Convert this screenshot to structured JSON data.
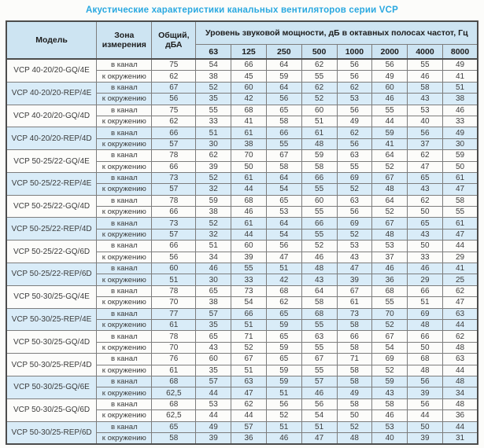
{
  "title": "Акустические характеристики канальных вентиляторов  серии VCP",
  "colors": {
    "title_blue": "#29a8e0",
    "header_bg": "#cde4f2",
    "shaded_row_bg": "#d9ecf8",
    "border_dark": "#4c4c4c",
    "border_light": "#7d7d7d"
  },
  "table": {
    "headers": {
      "model": "Модель",
      "zone": "Зона измерения",
      "total": "Общий, дБА",
      "power_band": "Уровень звуковой мощности, дБ в октавных полосах частот, Гц",
      "frequencies": [
        "63",
        "125",
        "250",
        "500",
        "1000",
        "2000",
        "4000",
        "8000"
      ]
    },
    "rows": [
      {
        "model": "VCP 40-20/20-GQ/4E",
        "shaded": false,
        "measurements": [
          {
            "zone": "в канал",
            "total": "75",
            "values": [
              54,
              66,
              64,
              62,
              56,
              56,
              55,
              49
            ]
          },
          {
            "zone": "к окружению",
            "total": "62",
            "values": [
              38,
              45,
              59,
              55,
              56,
              49,
              46,
              41
            ]
          }
        ]
      },
      {
        "model": "VCP 40-20/20-REP/4E",
        "shaded": true,
        "measurements": [
          {
            "zone": "в канал",
            "total": "67",
            "values": [
              52,
              60,
              64,
              62,
              62,
              60,
              58,
              51
            ]
          },
          {
            "zone": "к окружению",
            "total": "56",
            "values": [
              35,
              42,
              56,
              52,
              53,
              46,
              43,
              38
            ]
          }
        ]
      },
      {
        "model": "VCP 40-20/20-GQ/4D",
        "shaded": false,
        "measurements": [
          {
            "zone": "в канал",
            "total": "75",
            "values": [
              55,
              68,
              65,
              60,
              56,
              55,
              53,
              46
            ]
          },
          {
            "zone": "к окружению",
            "total": "62",
            "values": [
              33,
              41,
              58,
              51,
              49,
              44,
              40,
              33
            ]
          }
        ]
      },
      {
        "model": "VCP 40-20/20-REP/4D",
        "shaded": true,
        "measurements": [
          {
            "zone": "в канал",
            "total": "66",
            "values": [
              51,
              61,
              66,
              61,
              62,
              59,
              56,
              49
            ]
          },
          {
            "zone": "к окружению",
            "total": "57",
            "values": [
              30,
              38,
              55,
              48,
              56,
              41,
              37,
              30
            ]
          }
        ]
      },
      {
        "model": "VCP 50-25/22-GQ/4E",
        "shaded": false,
        "measurements": [
          {
            "zone": "в канал",
            "total": "78",
            "values": [
              62,
              70,
              67,
              59,
              63,
              64,
              62,
              59
            ]
          },
          {
            "zone": "к окружению",
            "total": "66",
            "values": [
              39,
              50,
              58,
              58,
              55,
              52,
              47,
              50
            ]
          }
        ]
      },
      {
        "model": "VCP 50-25/22-REP/4E",
        "shaded": true,
        "measurements": [
          {
            "zone": "в канал",
            "total": "73",
            "values": [
              52,
              61,
              64,
              66,
              69,
              67,
              65,
              61
            ]
          },
          {
            "zone": "к окружению",
            "total": "57",
            "values": [
              32,
              44,
              54,
              55,
              52,
              48,
              43,
              47
            ]
          }
        ]
      },
      {
        "model": "VCP 50-25/22-GQ/4D",
        "shaded": false,
        "measurements": [
          {
            "zone": "в канал",
            "total": "78",
            "values": [
              59,
              68,
              65,
              60,
              63,
              64,
              62,
              58
            ]
          },
          {
            "zone": "к окружению",
            "total": "66",
            "values": [
              38,
              46,
              53,
              55,
              56,
              52,
              50,
              55
            ]
          }
        ]
      },
      {
        "model": "VCP 50-25/22-REP/4D",
        "shaded": true,
        "measurements": [
          {
            "zone": "в канал",
            "total": "73",
            "values": [
              52,
              61,
              64,
              66,
              69,
              67,
              65,
              61
            ]
          },
          {
            "zone": "к окружению",
            "total": "57",
            "values": [
              32,
              44,
              54,
              55,
              52,
              48,
              43,
              47
            ]
          }
        ]
      },
      {
        "model": "VCP 50-25/22-GQ/6D",
        "shaded": false,
        "measurements": [
          {
            "zone": "в канал",
            "total": "66",
            "values": [
              51,
              60,
              56,
              52,
              53,
              53,
              50,
              44
            ]
          },
          {
            "zone": "к окружению",
            "total": "56",
            "values": [
              34,
              39,
              47,
              46,
              43,
              37,
              33,
              29
            ]
          }
        ]
      },
      {
        "model": "VCP 50-25/22-REP/6D",
        "shaded": true,
        "measurements": [
          {
            "zone": "в канал",
            "total": "60",
            "values": [
              46,
              55,
              51,
              48,
              47,
              46,
              46,
              41
            ]
          },
          {
            "zone": "к окружению",
            "total": "51",
            "values": [
              30,
              33,
              42,
              43,
              39,
              36,
              29,
              25
            ]
          }
        ]
      },
      {
        "model": "VCP 50-30/25-GQ/4E",
        "shaded": false,
        "measurements": [
          {
            "zone": "в канал",
            "total": "78",
            "values": [
              65,
              73,
              68,
              64,
              67,
              68,
              66,
              62
            ]
          },
          {
            "zone": "к окружению",
            "total": "70",
            "values": [
              38,
              54,
              62,
              58,
              61,
              55,
              51,
              47
            ]
          }
        ]
      },
      {
        "model": "VCP 50-30/25-REP/4E",
        "shaded": true,
        "measurements": [
          {
            "zone": "в канал",
            "total": "77",
            "values": [
              57,
              66,
              65,
              68,
              73,
              70,
              69,
              63
            ]
          },
          {
            "zone": "к окружению",
            "total": "61",
            "values": [
              35,
              51,
              59,
              55,
              58,
              52,
              48,
              44
            ]
          }
        ]
      },
      {
        "model": "VCP 50-30/25-GQ/4D",
        "shaded": false,
        "measurements": [
          {
            "zone": "в канал",
            "total": "78",
            "values": [
              65,
              71,
              65,
              63,
              66,
              67,
              66,
              62
            ]
          },
          {
            "zone": "к окружению",
            "total": "70",
            "values": [
              43,
              52,
              59,
              55,
              58,
              54,
              50,
              48
            ]
          }
        ]
      },
      {
        "model": "VCP 50-30/25-REP/4D",
        "shaded": false,
        "measurements": [
          {
            "zone": "в канал",
            "total": "76",
            "values": [
              60,
              67,
              65,
              67,
              71,
              69,
              68,
              63
            ]
          },
          {
            "zone": "к окружению",
            "total": "61",
            "values": [
              35,
              51,
              59,
              55,
              58,
              52,
              48,
              44
            ]
          }
        ]
      },
      {
        "model": "VCP 50-30/25-GQ/6E",
        "shaded": true,
        "measurements": [
          {
            "zone": "в канал",
            "total": "68",
            "values": [
              57,
              63,
              59,
              57,
              58,
              59,
              56,
              48
            ]
          },
          {
            "zone": "к окружению",
            "total": "62,5",
            "values": [
              44,
              47,
              51,
              46,
              49,
              43,
              39,
              34
            ]
          }
        ]
      },
      {
        "model": "VCP 50-30/25-GQ/6D",
        "shaded": false,
        "measurements": [
          {
            "zone": "в канал",
            "total": "68",
            "values": [
              53,
              62,
              56,
              56,
              58,
              58,
              56,
              48
            ]
          },
          {
            "zone": "к окружению",
            "total": "62,5",
            "values": [
              44,
              44,
              52,
              54,
              50,
              46,
              44,
              36
            ]
          }
        ]
      },
      {
        "model": "VCP 50-30/25-REP/6D",
        "shaded": true,
        "measurements": [
          {
            "zone": "в канал",
            "total": "65",
            "values": [
              49,
              57,
              51,
              51,
              52,
              53,
              50,
              44
            ]
          },
          {
            "zone": "к окружению",
            "total": "58",
            "values": [
              39,
              36,
              46,
              47,
              48,
              40,
              39,
              31
            ]
          }
        ]
      }
    ]
  }
}
